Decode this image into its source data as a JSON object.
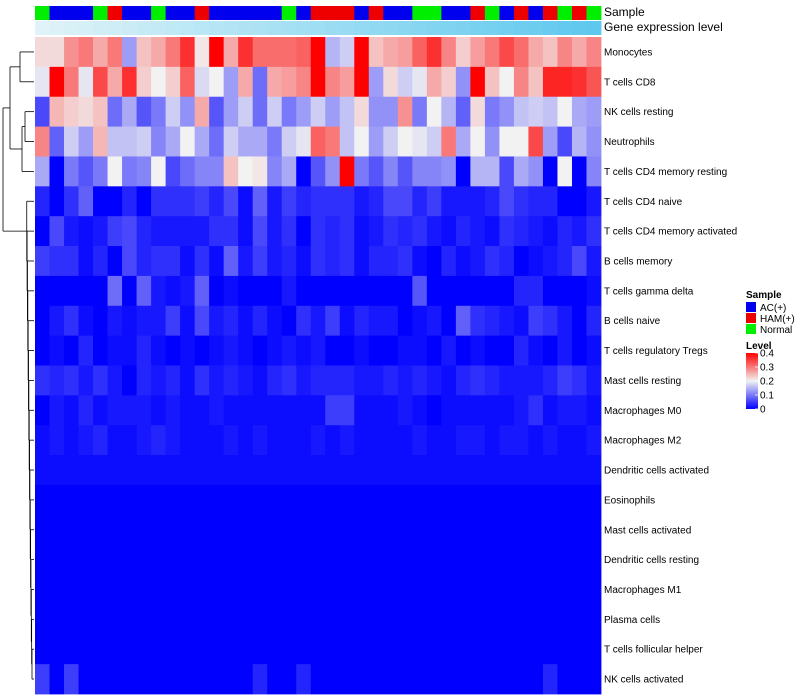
{
  "chart_data": {
    "type": "heatmap",
    "annotations": {
      "sample_label": "Sample",
      "gene_label": "Gene expression level",
      "sample_groups": [
        "N",
        "A",
        "A",
        "A",
        "N",
        "H",
        "A",
        "A",
        "N",
        "A",
        "A",
        "H",
        "A",
        "A",
        "A",
        "A",
        "A",
        "N",
        "A",
        "H",
        "H",
        "H",
        "A",
        "H",
        "A",
        "A",
        "N",
        "N",
        "A",
        "A",
        "H",
        "N",
        "A",
        "H",
        "A",
        "H",
        "N",
        "H",
        "N"
      ],
      "gene_expression_start": "#dff3f8",
      "gene_expression_end": "#5ec8ee"
    },
    "rows": [
      "Monocytes",
      "T cells CD8",
      "NK cells resting",
      "Neutrophils",
      "T cells CD4 memory resting",
      "T cells CD4 naive",
      "T cells CD4 memory activated",
      "B cells memory",
      "T cells gamma delta",
      "B cells naive",
      "T cells regulatory  Tregs",
      "Mast cells resting",
      "Macrophages M0",
      "Macrophages M2",
      "Dendritic cells activated",
      "Eosinophils",
      "Mast cells activated",
      "Dendritic cells resting",
      "Macrophages M1",
      "Plasma cells",
      "T cells follicular helper",
      "NK cells activated"
    ],
    "values": [
      [
        0.22,
        0.22,
        0.28,
        0.3,
        0.26,
        0.3,
        0.13,
        0.24,
        0.26,
        0.3,
        0.36,
        0.21,
        0.4,
        0.26,
        0.36,
        0.31,
        0.31,
        0.31,
        0.32,
        0.4,
        0.15,
        0.17,
        0.4,
        0.24,
        0.26,
        0.27,
        0.32,
        0.36,
        0.29,
        0.23,
        0.27,
        0.3,
        0.34,
        0.31,
        0.26,
        0.24,
        0.29,
        0.26,
        0.29
      ],
      [
        0.19,
        0.4,
        0.3,
        0.19,
        0.34,
        0.26,
        0.36,
        0.23,
        0.2,
        0.23,
        0.32,
        0.18,
        0.2,
        0.13,
        0.26,
        0.09,
        0.26,
        0.27,
        0.29,
        0.4,
        0.29,
        0.27,
        0.4,
        0.13,
        0.22,
        0.17,
        0.19,
        0.26,
        0.23,
        0.12,
        0.4,
        0.24,
        0.2,
        0.29,
        0.24,
        0.37,
        0.37,
        0.36,
        0.33
      ],
      [
        0.06,
        0.25,
        0.23,
        0.22,
        0.24,
        0.09,
        0.14,
        0.07,
        0.1,
        0.17,
        0.12,
        0.26,
        0.07,
        0.13,
        0.17,
        0.09,
        0.17,
        0.1,
        0.13,
        0.17,
        0.13,
        0.16,
        0.22,
        0.12,
        0.12,
        0.28,
        0.1,
        0.2,
        0.15,
        0.08,
        0.22,
        0.1,
        0.12,
        0.16,
        0.17,
        0.16,
        0.2,
        0.14,
        0.13
      ],
      [
        0.29,
        0.08,
        0.17,
        0.13,
        0.25,
        0.16,
        0.16,
        0.17,
        0.11,
        0.14,
        0.2,
        0.14,
        0.09,
        0.17,
        0.14,
        0.14,
        0.1,
        0.17,
        0.19,
        0.32,
        0.3,
        0.16,
        0.2,
        0.13,
        0.17,
        0.2,
        0.19,
        0.17,
        0.3,
        0.14,
        0.2,
        0.12,
        0.2,
        0.2,
        0.34,
        0.13,
        0.06,
        0.15,
        0.12
      ],
      [
        0.14,
        0.0,
        0.1,
        0.07,
        0.1,
        0.2,
        0.1,
        0.11,
        0.2,
        0.06,
        0.09,
        0.11,
        0.11,
        0.24,
        0.2,
        0.21,
        0.11,
        0.14,
        0.0,
        0.07,
        0.12,
        0.4,
        0.1,
        0.07,
        0.11,
        0.07,
        0.11,
        0.11,
        0.12,
        0.0,
        0.15,
        0.15,
        0.06,
        0.14,
        0.12,
        0.0,
        0.2,
        0.0,
        0.11
      ],
      [
        0.03,
        0.0,
        0.04,
        0.08,
        0.0,
        0.0,
        0.03,
        0.0,
        0.04,
        0.04,
        0.04,
        0.05,
        0.03,
        0.06,
        0.01,
        0.08,
        0.02,
        0.05,
        0.03,
        0.04,
        0.04,
        0.04,
        0.02,
        0.03,
        0.06,
        0.06,
        0.03,
        0.05,
        0.02,
        0.02,
        0.02,
        0.03,
        0.06,
        0.04,
        0.03,
        0.03,
        0.0,
        0.0,
        0.02
      ],
      [
        0.0,
        0.06,
        0.02,
        0.01,
        0.02,
        0.05,
        0.06,
        0.03,
        0.02,
        0.02,
        0.02,
        0.02,
        0.04,
        0.04,
        0.01,
        0.06,
        0.02,
        0.04,
        0.0,
        0.04,
        0.03,
        0.04,
        0.01,
        0.02,
        0.04,
        0.03,
        0.04,
        0.02,
        0.01,
        0.03,
        0.02,
        0.01,
        0.04,
        0.03,
        0.02,
        0.01,
        0.03,
        0.02,
        0.04
      ],
      [
        0.05,
        0.04,
        0.04,
        0.01,
        0.03,
        0.0,
        0.06,
        0.03,
        0.04,
        0.04,
        0.01,
        0.04,
        0.01,
        0.08,
        0.02,
        0.05,
        0.02,
        0.03,
        0.01,
        0.04,
        0.03,
        0.04,
        0.01,
        0.03,
        0.03,
        0.04,
        0.01,
        0.0,
        0.03,
        0.01,
        0.02,
        0.04,
        0.03,
        0.0,
        0.01,
        0.02,
        0.03,
        0.06,
        0.02
      ],
      [
        0.0,
        0.0,
        0.0,
        0.0,
        0.0,
        0.09,
        0.0,
        0.08,
        0.02,
        0.01,
        0.02,
        0.08,
        0.0,
        0.01,
        0.0,
        0.0,
        0.0,
        0.02,
        0.0,
        0.0,
        0.0,
        0.0,
        0.0,
        0.0,
        0.0,
        0.0,
        0.07,
        0.0,
        0.0,
        0.0,
        0.0,
        0.0,
        0.0,
        0.03,
        0.03,
        0.0,
        0.0,
        0.0,
        0.01
      ],
      [
        0.0,
        0.02,
        0.04,
        0.01,
        0.0,
        0.02,
        0.01,
        0.02,
        0.02,
        0.05,
        0.01,
        0.06,
        0.02,
        0.03,
        0.01,
        0.03,
        0.01,
        0.0,
        0.04,
        0.02,
        0.05,
        0.01,
        0.03,
        0.02,
        0.02,
        0.0,
        0.01,
        0.02,
        0.0,
        0.08,
        0.04,
        0.03,
        0.02,
        0.01,
        0.05,
        0.04,
        0.02,
        0.0,
        0.03
      ],
      [
        0.0,
        0.01,
        0.0,
        0.03,
        0.0,
        0.01,
        0.01,
        0.03,
        0.01,
        0.0,
        0.01,
        0.0,
        0.01,
        0.02,
        0.01,
        0.0,
        0.01,
        0.02,
        0.01,
        0.02,
        0.0,
        0.0,
        0.01,
        0.0,
        0.0,
        0.01,
        0.01,
        0.0,
        0.02,
        0.0,
        0.01,
        0.0,
        0.0,
        0.03,
        0.01,
        0.0,
        0.02,
        0.0,
        0.01
      ],
      [
        0.04,
        0.03,
        0.04,
        0.02,
        0.04,
        0.02,
        0.0,
        0.03,
        0.02,
        0.03,
        0.01,
        0.04,
        0.02,
        0.03,
        0.02,
        0.01,
        0.03,
        0.04,
        0.02,
        0.03,
        0.03,
        0.03,
        0.02,
        0.02,
        0.03,
        0.02,
        0.03,
        0.02,
        0.01,
        0.03,
        0.04,
        0.03,
        0.02,
        0.02,
        0.02,
        0.03,
        0.05,
        0.04,
        0.02
      ],
      [
        0.0,
        0.02,
        0.01,
        0.03,
        0.01,
        0.02,
        0.02,
        0.02,
        0.01,
        0.02,
        0.01,
        0.01,
        0.02,
        0.01,
        0.01,
        0.01,
        0.01,
        0.01,
        0.01,
        0.01,
        0.05,
        0.05,
        0.01,
        0.01,
        0.01,
        0.02,
        0.01,
        0.0,
        0.01,
        0.01,
        0.01,
        0.01,
        0.01,
        0.02,
        0.04,
        0.01,
        0.02,
        0.02,
        0.01
      ],
      [
        0.01,
        0.02,
        0.01,
        0.02,
        0.03,
        0.01,
        0.01,
        0.02,
        0.03,
        0.02,
        0.01,
        0.01,
        0.01,
        0.02,
        0.01,
        0.02,
        0.01,
        0.01,
        0.01,
        0.02,
        0.01,
        0.02,
        0.01,
        0.01,
        0.01,
        0.01,
        0.02,
        0.01,
        0.01,
        0.02,
        0.02,
        0.01,
        0.02,
        0.02,
        0.01,
        0.02,
        0.01,
        0.01,
        0.02
      ],
      [
        0.01,
        0.01,
        0.01,
        0.01,
        0.01,
        0.01,
        0.01,
        0.01,
        0.01,
        0.01,
        0.01,
        0.01,
        0.01,
        0.01,
        0.01,
        0.01,
        0.01,
        0.01,
        0.01,
        0.01,
        0.01,
        0.01,
        0.01,
        0.01,
        0.01,
        0.01,
        0.01,
        0.01,
        0.01,
        0.01,
        0.01,
        0.01,
        0.01,
        0.01,
        0.01,
        0.01,
        0.01,
        0.01,
        0.01
      ],
      [
        0.0,
        0.0,
        0.0,
        0.0,
        0.0,
        0.0,
        0.0,
        0.0,
        0.0,
        0.0,
        0.0,
        0.0,
        0.0,
        0.0,
        0.0,
        0.0,
        0.0,
        0.0,
        0.0,
        0.0,
        0.0,
        0.0,
        0.0,
        0.0,
        0.0,
        0.0,
        0.0,
        0.0,
        0.0,
        0.0,
        0.0,
        0.0,
        0.0,
        0.0,
        0.0,
        0.0,
        0.0,
        0.0,
        0.0
      ],
      [
        0.0,
        0.0,
        0.0,
        0.0,
        0.0,
        0.0,
        0.0,
        0.0,
        0.0,
        0.0,
        0.0,
        0.0,
        0.0,
        0.0,
        0.0,
        0.0,
        0.0,
        0.0,
        0.0,
        0.0,
        0.0,
        0.0,
        0.0,
        0.0,
        0.0,
        0.0,
        0.0,
        0.0,
        0.0,
        0.0,
        0.0,
        0.0,
        0.0,
        0.0,
        0.0,
        0.0,
        0.0,
        0.0,
        0.0
      ],
      [
        0.0,
        0.0,
        0.0,
        0.0,
        0.0,
        0.0,
        0.0,
        0.0,
        0.0,
        0.0,
        0.0,
        0.0,
        0.0,
        0.0,
        0.0,
        0.0,
        0.0,
        0.0,
        0.0,
        0.0,
        0.0,
        0.0,
        0.0,
        0.0,
        0.0,
        0.0,
        0.0,
        0.0,
        0.0,
        0.0,
        0.0,
        0.0,
        0.0,
        0.0,
        0.0,
        0.0,
        0.0,
        0.0,
        0.0
      ],
      [
        0.0,
        0.0,
        0.0,
        0.0,
        0.0,
        0.0,
        0.0,
        0.0,
        0.0,
        0.0,
        0.0,
        0.0,
        0.0,
        0.0,
        0.0,
        0.0,
        0.0,
        0.0,
        0.0,
        0.0,
        0.0,
        0.0,
        0.0,
        0.0,
        0.0,
        0.0,
        0.0,
        0.0,
        0.0,
        0.0,
        0.0,
        0.0,
        0.0,
        0.0,
        0.0,
        0.0,
        0.0,
        0.0,
        0.0
      ],
      [
        0.0,
        0.0,
        0.0,
        0.0,
        0.0,
        0.0,
        0.0,
        0.0,
        0.0,
        0.0,
        0.0,
        0.0,
        0.0,
        0.0,
        0.0,
        0.0,
        0.0,
        0.0,
        0.0,
        0.0,
        0.0,
        0.0,
        0.0,
        0.0,
        0.0,
        0.0,
        0.0,
        0.0,
        0.0,
        0.0,
        0.0,
        0.0,
        0.0,
        0.0,
        0.0,
        0.0,
        0.0,
        0.0,
        0.0
      ],
      [
        0.0,
        0.0,
        0.0,
        0.0,
        0.0,
        0.0,
        0.0,
        0.0,
        0.0,
        0.0,
        0.0,
        0.0,
        0.0,
        0.0,
        0.0,
        0.0,
        0.0,
        0.0,
        0.0,
        0.0,
        0.0,
        0.0,
        0.0,
        0.0,
        0.0,
        0.0,
        0.0,
        0.0,
        0.0,
        0.0,
        0.0,
        0.0,
        0.0,
        0.0,
        0.0,
        0.0,
        0.0,
        0.0,
        0.0
      ],
      [
        0.05,
        0.0,
        0.05,
        0.0,
        0.0,
        0.0,
        0.0,
        0.0,
        0.0,
        0.0,
        0.0,
        0.0,
        0.0,
        0.0,
        0.0,
        0.03,
        0.0,
        0.0,
        0.03,
        0.0,
        0.0,
        0.0,
        0.0,
        0.0,
        0.0,
        0.0,
        0.0,
        0.0,
        0.0,
        0.0,
        0.0,
        0.0,
        0.0,
        0.0,
        0.0,
        0.03,
        0.0,
        0.0,
        0.0
      ]
    ],
    "color_scale": {
      "min": 0,
      "mid": 0.2,
      "max": 0.4,
      "low_color": "#0000ff",
      "mid_color": "#f2f2f2",
      "high_color": "#ff0000"
    },
    "legend_sample": {
      "title": "Sample",
      "entries": [
        {
          "code": "A",
          "label": "AC(+)",
          "color": "#0000ee"
        },
        {
          "code": "H",
          "label": "HAM(+)",
          "color": "#ee0000"
        },
        {
          "code": "N",
          "label": "Normal",
          "color": "#00ee00"
        }
      ]
    },
    "legend_level": {
      "title": "Level",
      "ticks": [
        "0.4",
        "0.3",
        "0.2",
        "0.1",
        "0"
      ],
      "tick_values": [
        0.4,
        0.3,
        0.2,
        0.1,
        0
      ]
    },
    "dendrogram": {
      "merge_order": [
        [
          0,
          1
        ],
        [
          2,
          3
        ],
        [
          4,
          5
        ],
        [
          6,
          7
        ],
        [
          8,
          9
        ],
        [
          10,
          11
        ],
        [
          12,
          13
        ],
        [
          14,
          15
        ],
        [
          16,
          17
        ],
        [
          18,
          19
        ],
        [
          20,
          21
        ]
      ]
    }
  }
}
